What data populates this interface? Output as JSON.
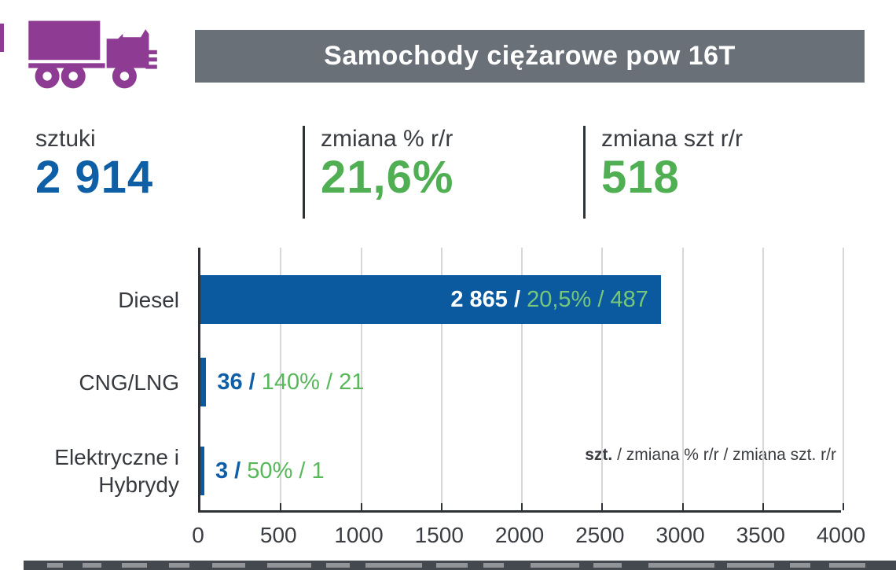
{
  "header": {
    "title": "Samochody ciężarowe pow 16T",
    "icon": "truck-icon",
    "bar_color": "#6A7077",
    "icon_color": "#8E3B93"
  },
  "stats": {
    "items": [
      {
        "label": "sztuki",
        "value": "2 914",
        "value_color": "#0F5FA6"
      },
      {
        "label": "zmiana % r/r",
        "value": "21,6%",
        "value_color": "#4FAF52"
      },
      {
        "label": "zmiana szt r/r",
        "value": "518",
        "value_color": "#4FAF52"
      }
    ]
  },
  "chart_data": {
    "type": "bar",
    "orientation": "horizontal",
    "title": "",
    "categories": [
      "Diesel",
      "CNG/LNG",
      "Elektryczne i Hybrydy"
    ],
    "series": [
      {
        "name": "szt.",
        "values": [
          2865,
          36,
          3
        ]
      },
      {
        "name": "zmiana % r/r",
        "values": [
          "20,5%",
          "140%",
          "50%"
        ]
      },
      {
        "name": "zmiana szt. r/r",
        "values": [
          487,
          21,
          1
        ]
      }
    ],
    "bar_labels": [
      {
        "value_text": "2 865 /",
        "change_text": " 20,5% / 487",
        "inside": true
      },
      {
        "value_text": "36 /",
        "change_text": " 140% / 21",
        "inside": false
      },
      {
        "value_text": "3 /",
        "change_text": " 50% / 1",
        "inside": false
      }
    ],
    "xlim": [
      0,
      4000
    ],
    "x_ticks": [
      0,
      500,
      1000,
      1500,
      2000,
      2500,
      3000,
      3500,
      4000
    ],
    "grid": true,
    "legend": {
      "bold": "szt.",
      "rest": " / zmiana % r/r / zmiana szt. r/r"
    },
    "legend_position": "bottom-right-inside",
    "bar_color": "#0B5AA0",
    "value_label_color": "#0F5FA6",
    "change_label_color": "#58B75B"
  },
  "colors": {
    "accent_purple": "#8E3B93",
    "header_gray": "#6A7077",
    "blue": "#0B5AA0",
    "green": "#4FAF52",
    "dark_text": "#3A3D42",
    "gridline": "#D7D7D7",
    "axis": "#2E3237"
  }
}
